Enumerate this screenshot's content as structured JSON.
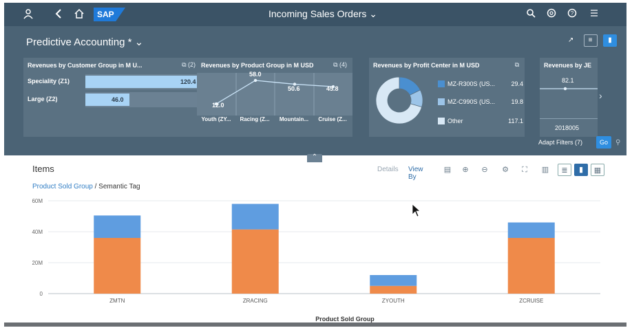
{
  "shell": {
    "title": "Incoming Sales Orders",
    "logo": "SAP",
    "left_icons": [
      "user-icon",
      "back-icon",
      "home-icon"
    ],
    "right_icons": [
      "search-icon",
      "copilot-icon",
      "help-icon",
      "notifications-icon"
    ]
  },
  "header": {
    "page_title": "Predictive Accounting *",
    "adapt_filters": "Adapt Filters (7)",
    "go": "Go"
  },
  "cards": {
    "customer_group": {
      "title": "Revenues by Customer Group in M U...",
      "count": "(2)",
      "rows": [
        {
          "label": "Speciality (Z1)",
          "value": "120.4",
          "fraction": 1.0
        },
        {
          "label": "Large (Z2)",
          "value": "46.0",
          "fraction": 0.38
        }
      ]
    },
    "product_group": {
      "title": "Revenues by Product Group in M USD",
      "count": "(4)",
      "values": [
        "12.0",
        "58.0",
        "50.6",
        "45.8"
      ],
      "numbers": [
        12.0,
        58.0,
        50.6,
        45.8
      ],
      "categories": [
        "Youth (ZY...",
        "Racing (Z...",
        "Mountain...",
        "Cruise (Z..."
      ]
    },
    "profit_center": {
      "title": "Revenues by Profit Center in M USD",
      "legend": [
        {
          "label": "MZ-R300S (US...",
          "value": "29.4",
          "number": 29.4,
          "color": "#4a8fd0"
        },
        {
          "label": "MZ-C990S (US...",
          "value": "19.8",
          "number": 19.8,
          "color": "#9cc4e8"
        },
        {
          "label": "Other",
          "value": "117.1",
          "number": 117.1,
          "color": "#d8e8f5"
        }
      ]
    },
    "je": {
      "title": "Revenues by JE",
      "value": "82.1",
      "period": "2018005"
    }
  },
  "content": {
    "title": "Items",
    "toolbar": {
      "details": "Details",
      "view_by": "View By"
    },
    "breadcrumb_link": "Product Sold Group",
    "breadcrumb_sep": " / ",
    "breadcrumb_rest": "Semantic Tag"
  },
  "chart_data": {
    "type": "bar",
    "stacked": true,
    "categories": [
      "ZMTN",
      "ZRACING",
      "ZYOUTH",
      "ZCRUISE"
    ],
    "series": [
      {
        "values": [
          36,
          41.5,
          5,
          36
        ],
        "color": "#ef8a4a"
      },
      {
        "values": [
          14.5,
          16.5,
          7,
          10
        ],
        "color": "#5f9de0"
      }
    ],
    "xlabel": "Product Sold Group",
    "ylabel": "",
    "yticks": [
      "0",
      "20M",
      "40M",
      "60M"
    ],
    "ylim": [
      0,
      60
    ],
    "grid": true
  }
}
